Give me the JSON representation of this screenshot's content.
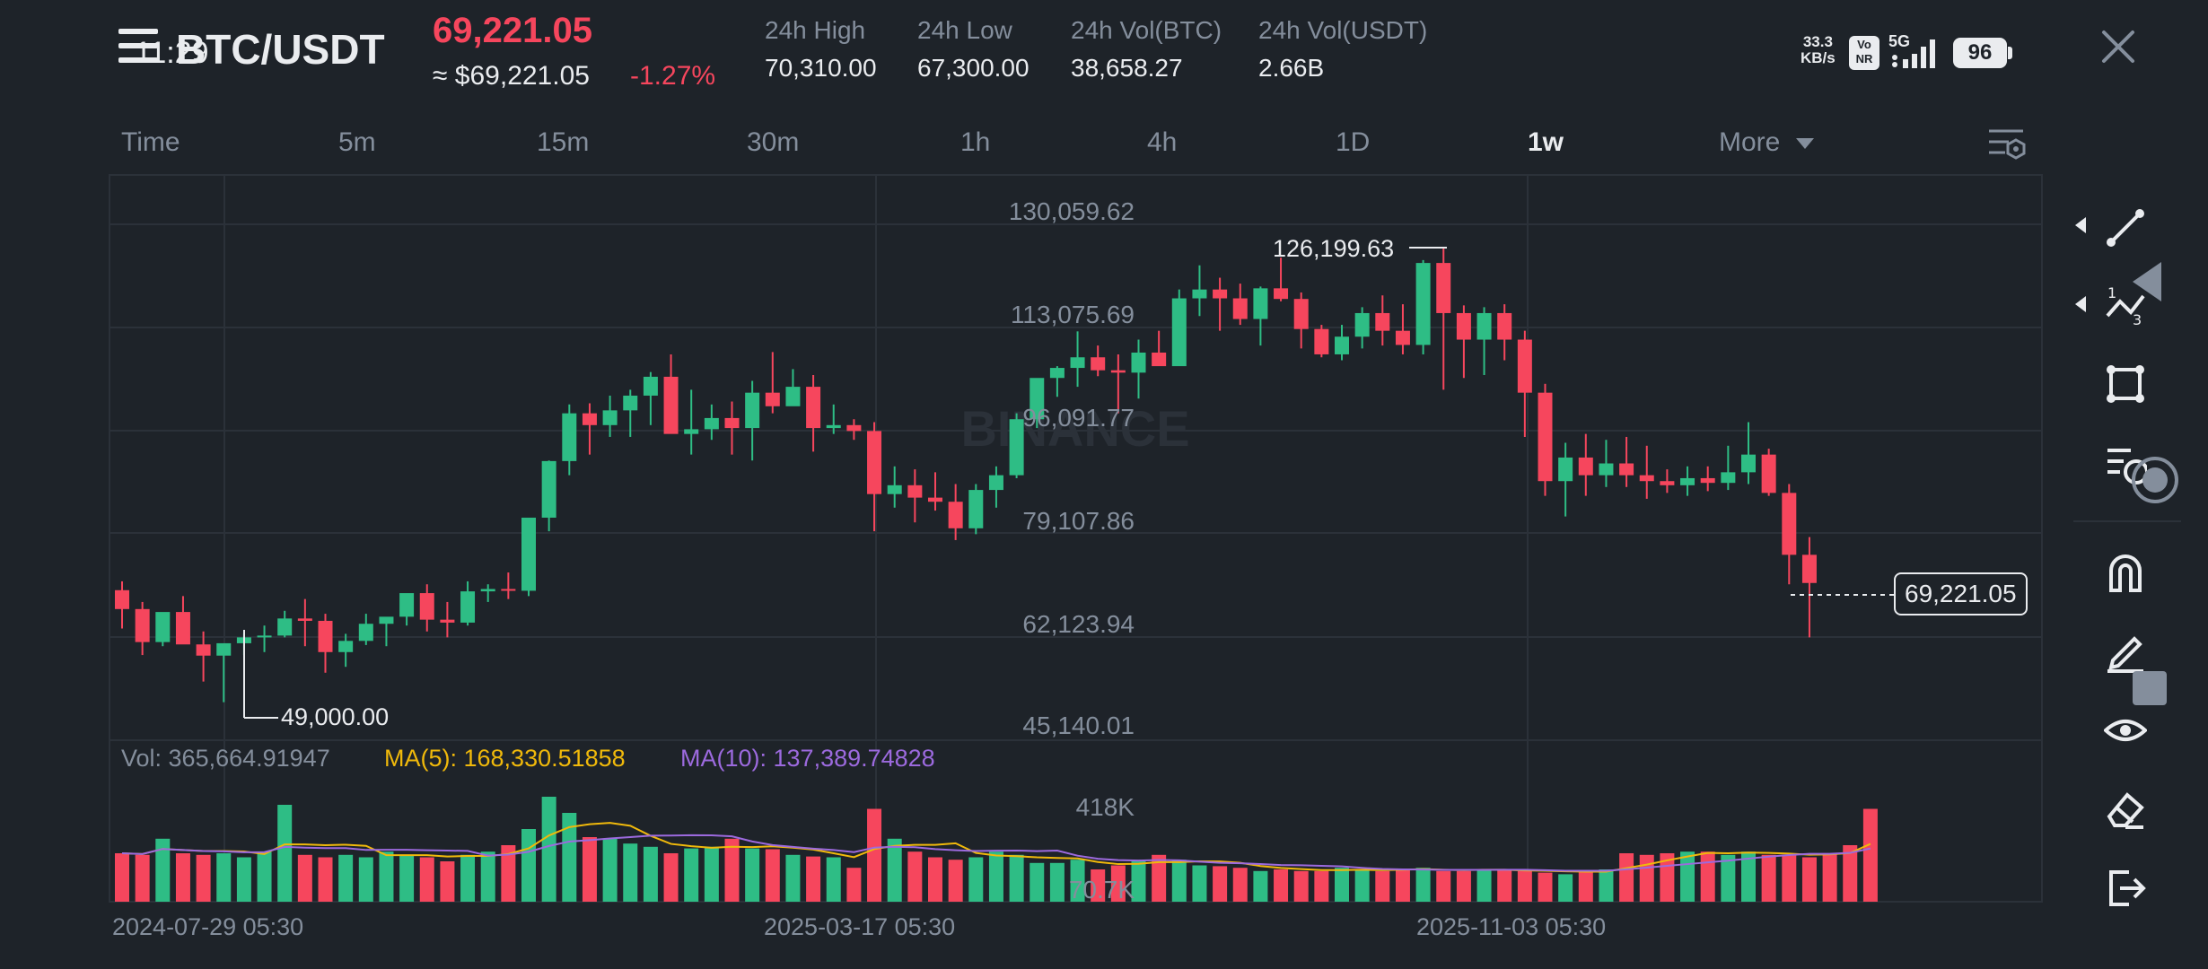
{
  "status_bar": {
    "time": "11:29",
    "net_speed_value": "33.3",
    "net_speed_unit": "KB/s",
    "volte_badge": "Vo NR",
    "network": "5G",
    "battery": "96"
  },
  "header": {
    "pair": "BTC/USDT",
    "last_price": "69,221.05",
    "approx_usd": "≈ $69,221.05",
    "change_pct": "-1.27%",
    "stats": [
      {
        "label": "24h High",
        "value": "70,310.00"
      },
      {
        "label": "24h Low",
        "value": "67,300.00"
      },
      {
        "label": "24h Vol(BTC)",
        "value": "38,658.27"
      },
      {
        "label": "24h Vol(USDT)",
        "value": "2.66B"
      }
    ],
    "close_icon": "close-icon",
    "menu_icon": "menu-icon"
  },
  "timeframes": {
    "items": [
      "Time",
      "5m",
      "15m",
      "30m",
      "1h",
      "4h",
      "1D",
      "1w",
      "More"
    ],
    "active": "1w",
    "settings_icon": "chart-settings-icon"
  },
  "chart": {
    "watermark": "BINANCE",
    "y_axis_ticks": [
      "130,059.62",
      "113,075.69",
      "96,091.77",
      "79,107.86",
      "62,123.94",
      "45,140.01"
    ],
    "x_axis_ticks": [
      "2024-07-29 05:30",
      "2025-03-17 05:30",
      "2025-11-03 05:30"
    ],
    "current_price_tag": "69,221.05",
    "max_label": "126,199.63",
    "min_label": "49,000.00",
    "volume_legend": {
      "vol": "Vol: 365,664.91947",
      "ma5": "MA(5): 168,330.51858",
      "ma10": "MA(10): 137,389.74828"
    },
    "volume_axis_ticks": [
      "418K",
      "70.7K"
    ]
  },
  "colors": {
    "up": "#2ebd85",
    "down": "#f6465d",
    "ma5": "#f0b90b",
    "ma10": "#9c6ade",
    "background": "#1e2329",
    "grid": "#2b3139"
  },
  "toolbar": {
    "icons": [
      "trend-line-icon",
      "fib-icon",
      "rectangle-icon",
      "indicator-icon",
      "magnet-icon",
      "brush-icon",
      "eye-icon",
      "eraser-icon",
      "exit-icon"
    ]
  }
}
